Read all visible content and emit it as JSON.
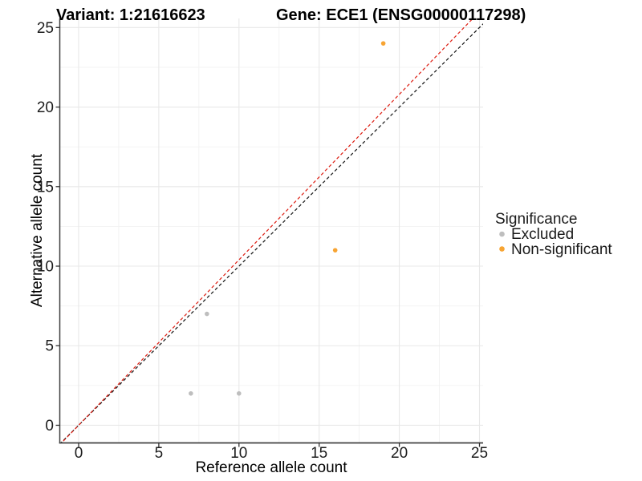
{
  "titles": {
    "left": "Variant: 1:21616623",
    "right": "Gene: ECE1 (ENSG00000117298)"
  },
  "chart_data": {
    "type": "scatter",
    "xlabel": "Reference allele count",
    "ylabel": "Alternative allele count",
    "xlim": [
      -1.175,
      25.225
    ],
    "ylim": [
      -1.11,
      25.57
    ],
    "x_ticks": [
      0,
      5,
      10,
      15,
      20,
      25
    ],
    "y_ticks": [
      0,
      5,
      10,
      15,
      20,
      25
    ],
    "x_minor_ticks": [
      2.5,
      7.5,
      12.5,
      17.5,
      22.5
    ],
    "y_minor_ticks": [
      2.5,
      7.5,
      12.5,
      17.5,
      22.5
    ],
    "grid": true,
    "background": "#ffffff",
    "series": [
      {
        "name": "Excluded",
        "color": "#BEBEBE",
        "points": [
          [
            7,
            2
          ],
          [
            8,
            7
          ],
          [
            10,
            2
          ]
        ]
      },
      {
        "name": "Non-significant",
        "color": "#F7A433",
        "points": [
          [
            16,
            11
          ],
          [
            19,
            24
          ]
        ]
      }
    ],
    "reference_lines": [
      {
        "name": "identity-line",
        "slope": 1.0,
        "intercept": 0,
        "color": "#1a1a1a",
        "dash": "4 3"
      },
      {
        "name": "expected-line",
        "slope": 1.04,
        "intercept": 0,
        "color": "#DE2318",
        "dash": "4 3"
      }
    ],
    "legend": {
      "title": "Significance",
      "position": "right",
      "items": [
        {
          "label": "Excluded",
          "color": "#BEBEBE"
        },
        {
          "label": "Non-significant",
          "color": "#F7A433"
        }
      ]
    },
    "style": {
      "grid_major_color": "#E8E8E8",
      "grid_minor_color": "#F2F2F2",
      "axis_line_color": "#404040",
      "tick_color": "#333333",
      "point_radius": 2.8
    }
  }
}
